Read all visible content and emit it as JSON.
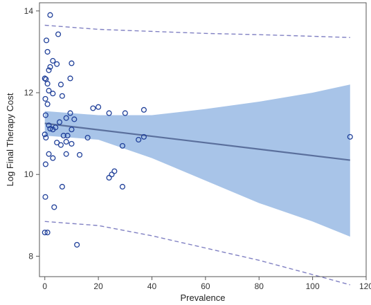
{
  "chart_data": {
    "type": "scatter",
    "xlabel": "Prevalence",
    "ylabel": "Log Final Therapy Cost",
    "xlim": [
      -2,
      120
    ],
    "ylim": [
      7.5,
      14.2
    ],
    "x_ticks": [
      0,
      20,
      40,
      60,
      80,
      100,
      120
    ],
    "y_ticks": [
      8,
      10,
      12,
      14
    ],
    "grid": false,
    "points": [
      {
        "x": 2,
        "y": 13.9
      },
      {
        "x": 0.6,
        "y": 13.28
      },
      {
        "x": 5,
        "y": 13.43
      },
      {
        "x": 1,
        "y": 13.0
      },
      {
        "x": 3,
        "y": 12.78
      },
      {
        "x": 4.5,
        "y": 12.7
      },
      {
        "x": 10,
        "y": 12.72
      },
      {
        "x": 2,
        "y": 12.63
      },
      {
        "x": 1.5,
        "y": 12.55
      },
      {
        "x": 0,
        "y": 12.35
      },
      {
        "x": 0.4,
        "y": 12.33
      },
      {
        "x": 9.5,
        "y": 12.35
      },
      {
        "x": 1,
        "y": 12.22
      },
      {
        "x": 6,
        "y": 12.2
      },
      {
        "x": 1.5,
        "y": 12.05
      },
      {
        "x": 3,
        "y": 11.98
      },
      {
        "x": 0.2,
        "y": 11.85
      },
      {
        "x": 6.5,
        "y": 11.92
      },
      {
        "x": 1,
        "y": 11.72
      },
      {
        "x": 18,
        "y": 11.62
      },
      {
        "x": 20,
        "y": 11.65
      },
      {
        "x": 37,
        "y": 11.58
      },
      {
        "x": 9.5,
        "y": 11.5
      },
      {
        "x": 24,
        "y": 11.5
      },
      {
        "x": 30,
        "y": 11.5
      },
      {
        "x": 0.3,
        "y": 11.45
      },
      {
        "x": 8,
        "y": 11.38
      },
      {
        "x": 11,
        "y": 11.35
      },
      {
        "x": 5.5,
        "y": 11.28
      },
      {
        "x": 1.5,
        "y": 11.2
      },
      {
        "x": 2,
        "y": 11.12
      },
      {
        "x": 3,
        "y": 11.1
      },
      {
        "x": 4,
        "y": 11.15
      },
      {
        "x": 10,
        "y": 11.1
      },
      {
        "x": 0,
        "y": 10.98
      },
      {
        "x": 0.4,
        "y": 10.9
      },
      {
        "x": 7,
        "y": 10.95
      },
      {
        "x": 8.5,
        "y": 10.95
      },
      {
        "x": 16,
        "y": 10.9
      },
      {
        "x": 35,
        "y": 10.85
      },
      {
        "x": 37,
        "y": 10.92
      },
      {
        "x": 114,
        "y": 10.92
      },
      {
        "x": 4.5,
        "y": 10.78
      },
      {
        "x": 6,
        "y": 10.72
      },
      {
        "x": 8,
        "y": 10.8
      },
      {
        "x": 10,
        "y": 10.75
      },
      {
        "x": 29,
        "y": 10.7
      },
      {
        "x": 1.5,
        "y": 10.5
      },
      {
        "x": 8,
        "y": 10.5
      },
      {
        "x": 13,
        "y": 10.48
      },
      {
        "x": 3,
        "y": 10.4
      },
      {
        "x": 0.3,
        "y": 10.25
      },
      {
        "x": 26,
        "y": 10.08
      },
      {
        "x": 25,
        "y": 10.0
      },
      {
        "x": 24,
        "y": 9.92
      },
      {
        "x": 6.5,
        "y": 9.7
      },
      {
        "x": 29,
        "y": 9.7
      },
      {
        "x": 0.2,
        "y": 9.45
      },
      {
        "x": 3.5,
        "y": 9.2
      },
      {
        "x": 0,
        "y": 8.58
      },
      {
        "x": 1,
        "y": 8.58
      },
      {
        "x": 12,
        "y": 8.28
      }
    ],
    "fit_line": {
      "x": [
        0,
        114
      ],
      "y": [
        11.25,
        10.35
      ]
    },
    "confidence_band": {
      "x": [
        0,
        20,
        40,
        60,
        80,
        100,
        114
      ],
      "upper": [
        11.55,
        11.45,
        11.45,
        11.6,
        11.78,
        12.0,
        12.2
      ],
      "lower": [
        10.95,
        10.85,
        10.4,
        9.85,
        9.3,
        8.85,
        8.48
      ]
    },
    "prediction_bands": {
      "x": [
        0,
        20,
        40,
        60,
        80,
        100,
        114
      ],
      "upper": [
        13.65,
        13.55,
        13.5,
        13.45,
        13.42,
        13.38,
        13.35
      ],
      "lower": [
        8.85,
        8.75,
        8.5,
        8.2,
        7.9,
        7.55,
        7.3
      ]
    },
    "colors": {
      "point": "#1f3f99",
      "fit_line": "#5a6f9c",
      "band_fill": "#a8c4e8",
      "prediction_line": "#7f7fc2",
      "axis": "#555555"
    }
  }
}
